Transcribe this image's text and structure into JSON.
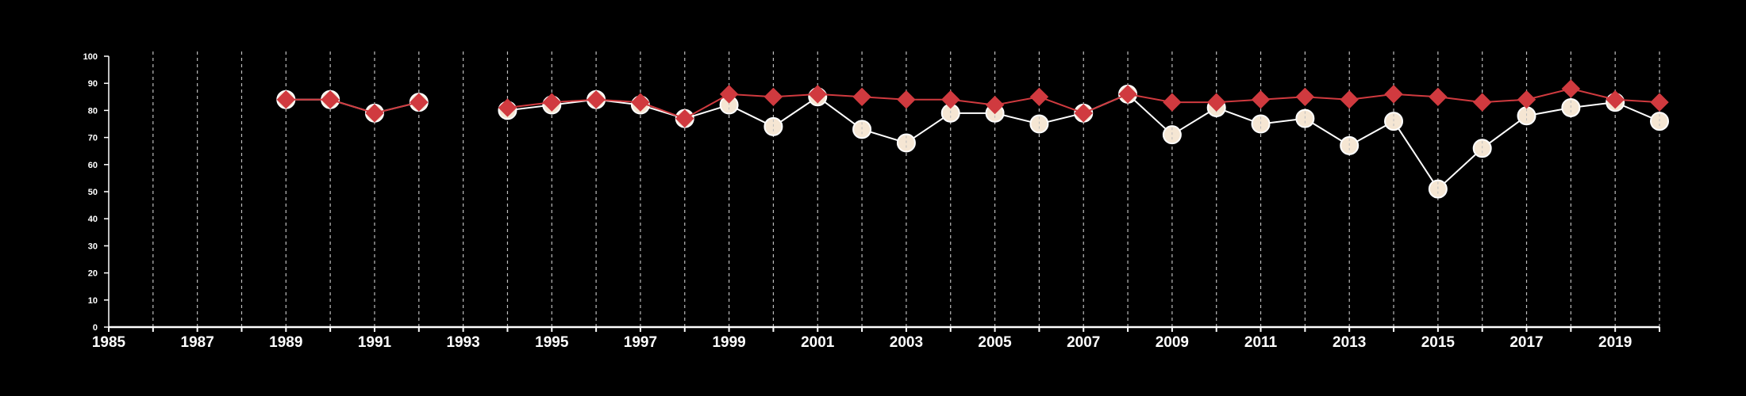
{
  "chart_data": {
    "type": "line",
    "title": "",
    "xlabel": "",
    "ylabel": "",
    "xlim": [
      1985,
      2020
    ],
    "ylim": [
      0,
      100
    ],
    "x_ticks": [
      "1985",
      "1987",
      "1989",
      "1991",
      "1993",
      "1995",
      "1997",
      "1999",
      "2001",
      "2003",
      "2005",
      "2007",
      "2009",
      "2011",
      "2013",
      "2015",
      "2017",
      "2019"
    ],
    "y_ticks": [
      "0",
      "10",
      "20",
      "30",
      "40",
      "50",
      "60",
      "70",
      "80",
      "90",
      "100"
    ],
    "grid": "vertical dashed lines at each year",
    "series": [
      {
        "marker": "circle",
        "color": "#ffffff",
        "marker_fill": "#f5e6d3",
        "points": [
          [
            1989,
            84
          ],
          [
            1990,
            84
          ],
          [
            1991,
            79
          ],
          [
            1992,
            83
          ],
          [
            1994,
            80
          ],
          [
            1995,
            82
          ],
          [
            1996,
            84
          ],
          [
            1997,
            82
          ],
          [
            1998,
            77
          ],
          [
            1999,
            82
          ],
          [
            2000,
            74
          ],
          [
            2001,
            85
          ],
          [
            2002,
            73
          ],
          [
            2003,
            68
          ],
          [
            2004,
            79
          ],
          [
            2005,
            79
          ],
          [
            2006,
            75
          ],
          [
            2007,
            79
          ],
          [
            2008,
            86
          ],
          [
            2009,
            71
          ],
          [
            2010,
            81
          ],
          [
            2011,
            75
          ],
          [
            2012,
            77
          ],
          [
            2013,
            67
          ],
          [
            2014,
            76
          ],
          [
            2015,
            51
          ],
          [
            2016,
            66
          ],
          [
            2017,
            78
          ],
          [
            2018,
            81
          ],
          [
            2019,
            83
          ],
          [
            2020,
            76
          ]
        ]
      },
      {
        "marker": "diamond",
        "color": "#d03a3f",
        "points": [
          [
            1989,
            84
          ],
          [
            1990,
            84
          ],
          [
            1991,
            79
          ],
          [
            1992,
            83
          ],
          [
            1994,
            81
          ],
          [
            1995,
            83
          ],
          [
            1996,
            84
          ],
          [
            1997,
            83
          ],
          [
            1998,
            77
          ],
          [
            1999,
            86
          ],
          [
            2000,
            85
          ],
          [
            2001,
            86
          ],
          [
            2002,
            85
          ],
          [
            2003,
            84
          ],
          [
            2004,
            84
          ],
          [
            2005,
            82
          ],
          [
            2006,
            85
          ],
          [
            2007,
            79
          ],
          [
            2008,
            86
          ],
          [
            2009,
            83
          ],
          [
            2010,
            83
          ],
          [
            2011,
            84
          ],
          [
            2012,
            85
          ],
          [
            2013,
            84
          ],
          [
            2014,
            86
          ],
          [
            2015,
            85
          ],
          [
            2016,
            83
          ],
          [
            2017,
            84
          ],
          [
            2018,
            88
          ],
          [
            2019,
            84
          ],
          [
            2020,
            83
          ]
        ]
      }
    ]
  }
}
